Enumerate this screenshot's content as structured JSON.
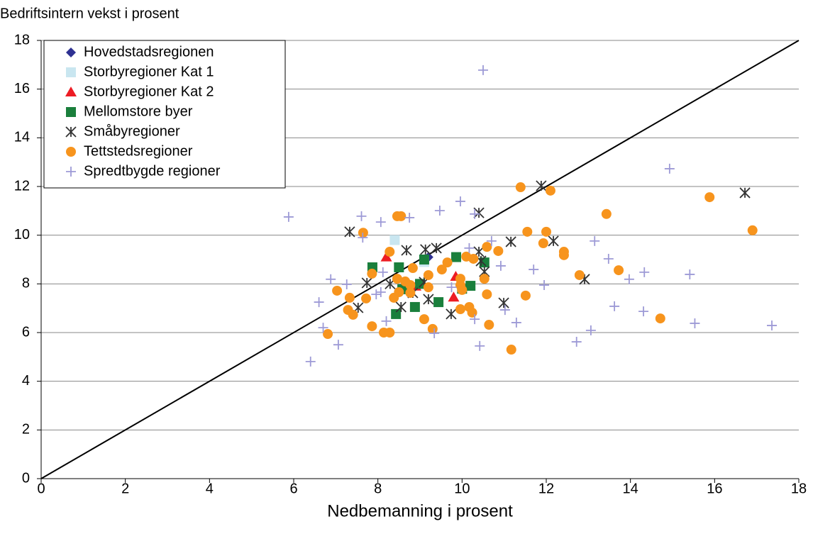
{
  "chart_data": {
    "type": "scatter",
    "y_label": "Bedriftsintern vekst i prosent",
    "x_label": "Nedbemanning i prosent",
    "xlim": [
      0,
      18
    ],
    "ylim": [
      0,
      18
    ],
    "xticks": [
      0,
      2,
      4,
      6,
      8,
      10,
      12,
      14,
      16,
      18
    ],
    "yticks": [
      0,
      2,
      4,
      6,
      8,
      10,
      12,
      14,
      16,
      18
    ],
    "grid": true,
    "diagonal": true,
    "legend": "upper left",
    "series": [
      {
        "name": "Hovedstadsregionen",
        "color": "#2e3192",
        "marker": "diamond",
        "x": [
          9.2
        ],
        "values": [
          9.1
        ]
      },
      {
        "name": "Storbyregioner Kat 1",
        "color": "#c9e6f0",
        "marker": "square",
        "x": [
          8.4,
          9.1
        ],
        "values": [
          9.8,
          8.9
        ]
      },
      {
        "name": "Storbyregioner Kat 2",
        "color": "#ed1c24",
        "marker": "triangle",
        "x": [
          8.2,
          9.8,
          9.85,
          8.9
        ],
        "values": [
          9.1,
          7.45,
          8.3,
          7.9
        ]
      },
      {
        "name": "Mellomstore byer",
        "color": "#1a7f3c",
        "marker": "square",
        "x": [
          7.87,
          8.43,
          8.88,
          9.44,
          9.1,
          9.86,
          10.53,
          10.2,
          10.0,
          8.5,
          9.0,
          8.58
        ],
        "values": [
          8.68,
          6.76,
          7.05,
          7.25,
          9.0,
          9.1,
          8.88,
          7.92,
          7.8,
          8.68,
          8.0,
          7.78
        ]
      },
      {
        "name": "Småbyregioner",
        "color": "#333333",
        "marker": "asterisk",
        "x": [
          7.33,
          8.68,
          9.13,
          9.39,
          10.4,
          11.88,
          11.16,
          12.17,
          12.91,
          16.72,
          7.74,
          7.53,
          8.55,
          9.2,
          9.74,
          10.99,
          10.53,
          10.4,
          9.1,
          8.29,
          8.83,
          10.45
        ],
        "values": [
          10.14,
          9.38,
          9.41,
          9.47,
          10.92,
          12.03,
          9.73,
          9.76,
          8.19,
          11.74,
          8.04,
          7.02,
          7.05,
          7.37,
          6.76,
          7.22,
          8.5,
          9.32,
          8.07,
          8.0,
          7.63,
          8.94
        ]
      },
      {
        "name": "Tettstedsregioner",
        "color": "#f7941d",
        "marker": "circle",
        "x": [
          7.65,
          8.46,
          8.55,
          8.28,
          11.39,
          12.1,
          13.43,
          15.88,
          16.9,
          11.55,
          12.0,
          11.93,
          12.42,
          12.42,
          12.79,
          13.72,
          14.71,
          11.51,
          11.17,
          10.64,
          10.59,
          10.59,
          10.86,
          10.27,
          10.1,
          9.65,
          9.52,
          9.2,
          9.2,
          9.96,
          9.96,
          10.17,
          10.24,
          9.96,
          9.1,
          9.3,
          7.86,
          7.72,
          7.33,
          7.29,
          7.41,
          7.03,
          6.81,
          7.86,
          8.14,
          8.28,
          8.46,
          8.65,
          8.77,
          8.83,
          8.38,
          8.5,
          8.77,
          10.53,
          10.0
        ],
        "values": [
          10.1,
          10.78,
          10.78,
          9.32,
          11.97,
          11.83,
          10.87,
          11.56,
          10.2,
          10.14,
          10.14,
          9.67,
          9.32,
          9.18,
          8.36,
          8.56,
          6.58,
          7.52,
          5.3,
          6.32,
          7.57,
          9.52,
          9.35,
          9.03,
          9.12,
          8.88,
          8.59,
          8.36,
          7.86,
          8.21,
          7.95,
          7.05,
          6.82,
          6.96,
          6.55,
          6.15,
          8.42,
          7.4,
          7.43,
          6.93,
          6.73,
          7.72,
          5.94,
          6.26,
          6.0,
          6.0,
          8.21,
          8.1,
          7.95,
          8.65,
          7.43,
          7.66,
          7.63,
          8.21,
          7.75
        ]
      },
      {
        "name": "Spredtbygde regioner",
        "color": "#9d9ad6",
        "marker": "plus",
        "x": [
          5.88,
          6.4,
          6.6,
          6.7,
          6.88,
          7.06,
          7.26,
          7.61,
          7.64,
          8.07,
          8.12,
          8.2,
          8.75,
          9.47,
          9.96,
          10.3,
          10.5,
          10.7,
          10.92,
          10.42,
          9.34,
          11.02,
          11.29,
          11.7,
          11.95,
          13.15,
          13.06,
          12.72,
          13.48,
          13.62,
          13.97,
          14.31,
          14.33,
          14.93,
          15.41,
          15.53,
          17.36,
          7.96,
          8.07,
          10.17,
          9.75,
          10.3
        ],
        "values": [
          10.75,
          4.81,
          7.25,
          6.2,
          8.19,
          5.5,
          7.98,
          10.78,
          9.9,
          10.54,
          8.48,
          6.47,
          10.72,
          11.01,
          11.39,
          10.87,
          16.78,
          9.76,
          8.74,
          5.45,
          5.97,
          6.93,
          6.41,
          8.59,
          7.95,
          9.76,
          6.09,
          5.62,
          9.03,
          7.08,
          8.19,
          6.87,
          8.48,
          12.73,
          8.39,
          6.38,
          6.29,
          7.57,
          7.66,
          9.47,
          7.86,
          6.55
        ]
      }
    ]
  }
}
